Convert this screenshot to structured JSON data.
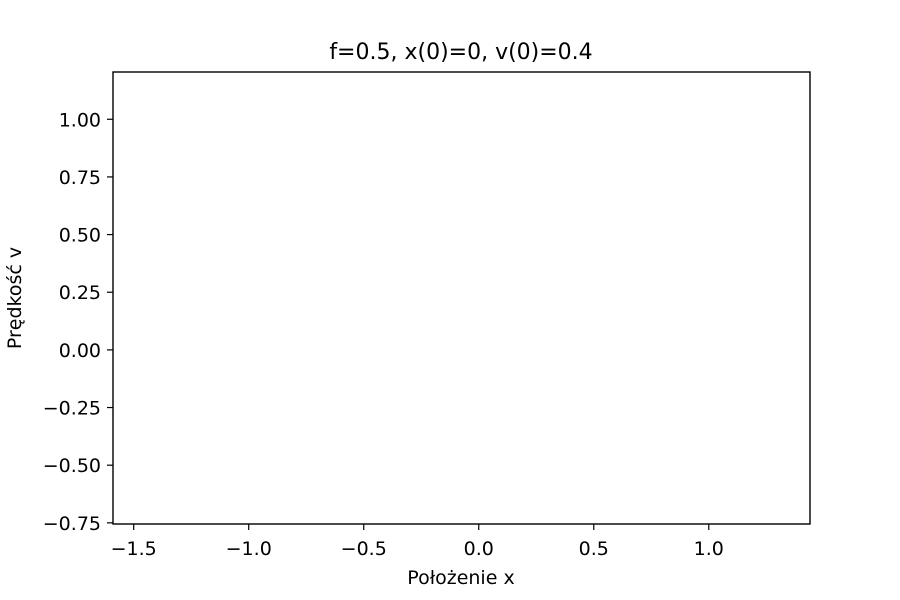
{
  "chart_data": {
    "type": "line",
    "title": "f=0.5, x(0)=0, v(0)=0.4",
    "xlabel": "Położenie x",
    "ylabel": "Prędkość v",
    "xlim": [
      -1.59,
      1.44
    ],
    "ylim": [
      -0.755,
      1.205
    ],
    "xticks": [
      {
        "value": -1.5,
        "label": "−1.5"
      },
      {
        "value": -1.0,
        "label": "−1.0"
      },
      {
        "value": -0.5,
        "label": "−0.5"
      },
      {
        "value": 0.0,
        "label": "0.0"
      },
      {
        "value": 0.5,
        "label": "0.5"
      },
      {
        "value": 1.0,
        "label": "1.0"
      }
    ],
    "yticks": [
      {
        "value": -0.75,
        "label": "−0.75"
      },
      {
        "value": -0.5,
        "label": "−0.50"
      },
      {
        "value": -0.25,
        "label": "−0.25"
      },
      {
        "value": 0.0,
        "label": "0.00"
      },
      {
        "value": 0.25,
        "label": "0.25"
      },
      {
        "value": 0.5,
        "label": "0.50"
      },
      {
        "value": 0.75,
        "label": "0.75"
      },
      {
        "value": 1.0,
        "label": "1.00"
      }
    ],
    "series": [],
    "grid": false
  }
}
